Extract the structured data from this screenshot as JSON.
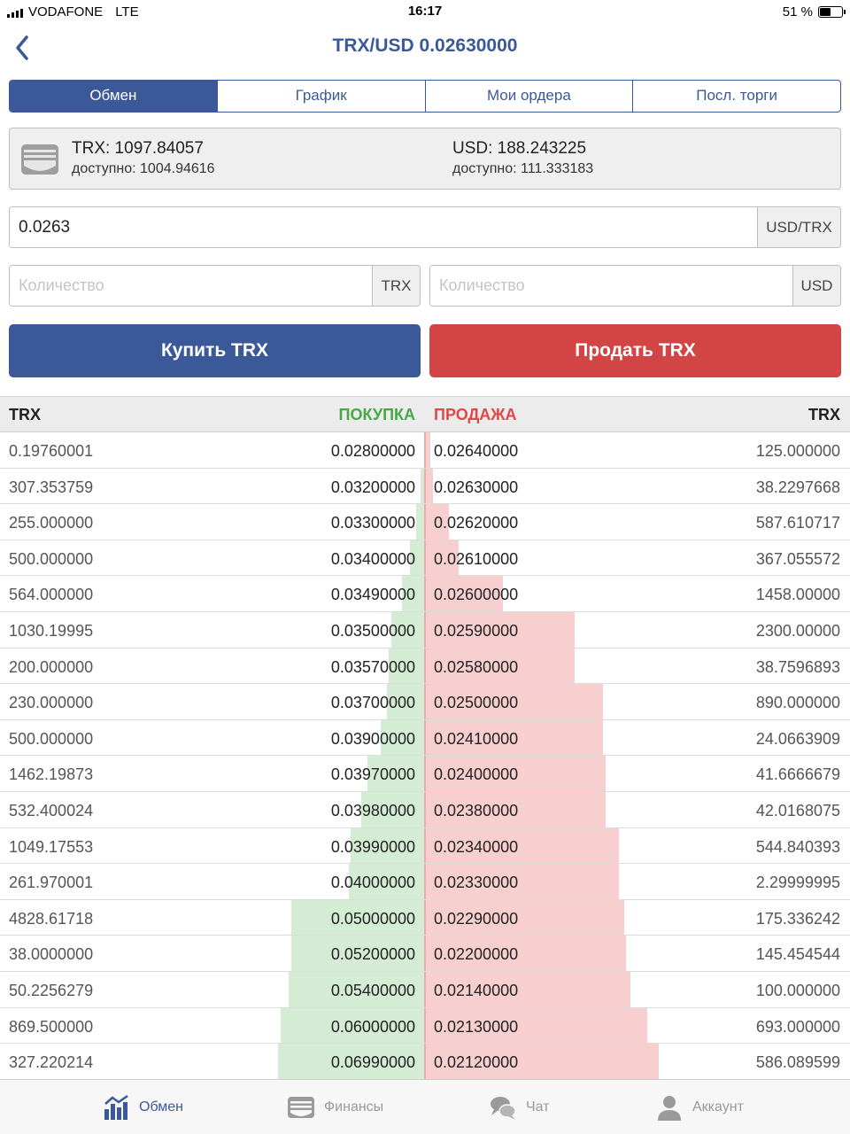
{
  "status_bar": {
    "carrier": "VODAFONE",
    "network": "LTE",
    "time": "16:17",
    "battery": "51 %"
  },
  "header": {
    "title": "TRX/USD 0.02630000",
    "back_icon": "chevron-left-icon"
  },
  "tabs": [
    {
      "label": "Обмен",
      "active": true
    },
    {
      "label": "График",
      "active": false
    },
    {
      "label": "Мои ордера",
      "active": false
    },
    {
      "label": "Посл. торги",
      "active": false
    }
  ],
  "balance": {
    "icon": "wallet-icon",
    "trx_total": "TRX: 1097.84057",
    "trx_available": "доступно: 1004.94616",
    "usd_total": "USD: 188.243225",
    "usd_available": "доступно: 111.333183"
  },
  "form": {
    "price_value": "0.0263",
    "price_unit": "USD/TRX",
    "qty_trx_placeholder": "Количество",
    "qty_trx_unit": "TRX",
    "qty_usd_placeholder": "Количество",
    "qty_usd_unit": "USD",
    "buy_label": "Купить TRX",
    "sell_label": "Продать TRX"
  },
  "order_book": {
    "header_left": "TRX",
    "header_buy": "ПОКУПКА",
    "header_sell": "ПРОДАЖА",
    "header_right": "TRX",
    "colors": {
      "buy": "#46a846",
      "sell": "#e04848",
      "buy_bar": "#d3ecd3",
      "sell_bar": "#f8cfcf"
    },
    "rows": [
      {
        "buy_amount": "0.19760001",
        "buy_price": "0.02800000",
        "sell_price": "0.02640000",
        "sell_amount": "125.000000",
        "buy_depth": 0.0,
        "sell_depth": 0.02
      },
      {
        "buy_amount": "307.353759",
        "buy_price": "0.03200000",
        "sell_price": "0.02630000",
        "sell_amount": "38.2297668",
        "buy_depth": 0.02,
        "sell_depth": 0.03
      },
      {
        "buy_amount": "255.000000",
        "buy_price": "0.03300000",
        "sell_price": "0.02620000",
        "sell_amount": "587.610717",
        "buy_depth": 0.04,
        "sell_depth": 0.1
      },
      {
        "buy_amount": "500.000000",
        "buy_price": "0.03400000",
        "sell_price": "0.02610000",
        "sell_amount": "367.055572",
        "buy_depth": 0.07,
        "sell_depth": 0.14
      },
      {
        "buy_amount": "564.000000",
        "buy_price": "0.03490000",
        "sell_price": "0.02600000",
        "sell_amount": "1458.00000",
        "buy_depth": 0.11,
        "sell_depth": 0.33
      },
      {
        "buy_amount": "1030.19995",
        "buy_price": "0.03500000",
        "sell_price": "0.02590000",
        "sell_amount": "2300.00000",
        "buy_depth": 0.16,
        "sell_depth": 0.64
      },
      {
        "buy_amount": "200.000000",
        "buy_price": "0.03570000",
        "sell_price": "0.02580000",
        "sell_amount": "38.7596893",
        "buy_depth": 0.17,
        "sell_depth": 0.64
      },
      {
        "buy_amount": "230.000000",
        "buy_price": "0.03700000",
        "sell_price": "0.02500000",
        "sell_amount": "890.000000",
        "buy_depth": 0.18,
        "sell_depth": 0.76
      },
      {
        "buy_amount": "500.000000",
        "buy_price": "0.03900000",
        "sell_price": "0.02410000",
        "sell_amount": "24.0663909",
        "buy_depth": 0.21,
        "sell_depth": 0.76
      },
      {
        "buy_amount": "1462.19873",
        "buy_price": "0.03970000",
        "sell_price": "0.02400000",
        "sell_amount": "41.6666679",
        "buy_depth": 0.27,
        "sell_depth": 0.77
      },
      {
        "buy_amount": "532.400024",
        "buy_price": "0.03980000",
        "sell_price": "0.02380000",
        "sell_amount": "42.0168075",
        "buy_depth": 0.3,
        "sell_depth": 0.77
      },
      {
        "buy_amount": "1049.17553",
        "buy_price": "0.03990000",
        "sell_price": "0.02340000",
        "sell_amount": "544.840393",
        "buy_depth": 0.35,
        "sell_depth": 0.83
      },
      {
        "buy_amount": "261.970001",
        "buy_price": "0.04000000",
        "sell_price": "0.02330000",
        "sell_amount": "2.29999995",
        "buy_depth": 0.36,
        "sell_depth": 0.83
      },
      {
        "buy_amount": "4828.61718",
        "buy_price": "0.05000000",
        "sell_price": "0.02290000",
        "sell_amount": "175.336242",
        "buy_depth": 0.63,
        "sell_depth": 0.85
      },
      {
        "buy_amount": "38.0000000",
        "buy_price": "0.05200000",
        "sell_price": "0.02200000",
        "sell_amount": "145.454544",
        "buy_depth": 0.63,
        "sell_depth": 0.86
      },
      {
        "buy_amount": "50.2256279",
        "buy_price": "0.05400000",
        "sell_price": "0.02140000",
        "sell_amount": "100.000000",
        "buy_depth": 0.64,
        "sell_depth": 0.88
      },
      {
        "buy_amount": "869.500000",
        "buy_price": "0.06000000",
        "sell_price": "0.02130000",
        "sell_amount": "693.000000",
        "buy_depth": 0.68,
        "sell_depth": 0.95
      },
      {
        "buy_amount": "327.220214",
        "buy_price": "0.06990000",
        "sell_price": "0.02120000",
        "sell_amount": "586.089599",
        "buy_depth": 0.69,
        "sell_depth": 1.0
      }
    ]
  },
  "bottom_nav": [
    {
      "label": "Обмен",
      "icon": "chart-bars-icon",
      "active": true
    },
    {
      "label": "Финансы",
      "icon": "wallet-icon",
      "active": false
    },
    {
      "label": "Чат",
      "icon": "chat-bubbles-icon",
      "active": false
    },
    {
      "label": "Аккаунт",
      "icon": "user-icon",
      "active": false
    }
  ]
}
